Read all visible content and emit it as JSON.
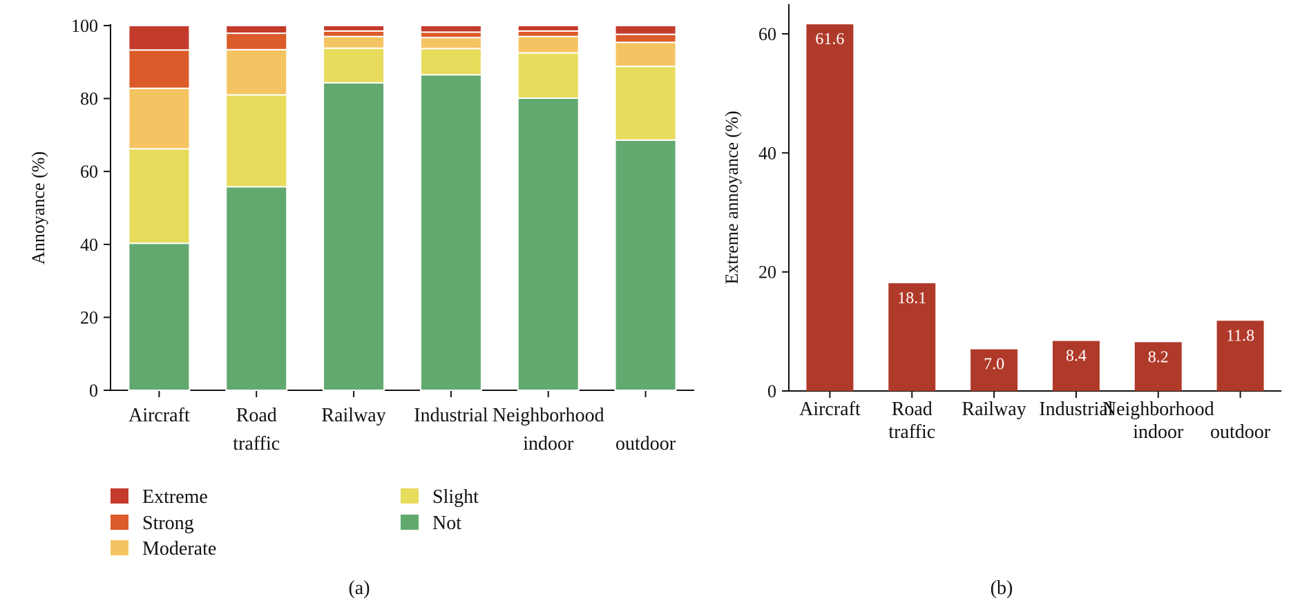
{
  "chart_data": [
    {
      "type": "bar",
      "stacked": true,
      "panel_label": "(a)",
      "ylabel": "Annoyance (%)",
      "ylim": [
        0,
        100
      ],
      "yticks": [
        "0",
        "20",
        "40",
        "60",
        "80",
        "100"
      ],
      "categories": [
        [
          "Aircraft"
        ],
        [
          "Road",
          "traffic"
        ],
        [
          "Railway"
        ],
        [
          "Industrial"
        ],
        [
          "Neighborhood",
          "indoor"
        ],
        [
          "",
          "outdoor"
        ]
      ],
      "series": [
        {
          "name": "Not",
          "color": "#62a970",
          "values": [
            40.3,
            55.8,
            84.3,
            86.5,
            80.1,
            68.6
          ]
        },
        {
          "name": "Slight",
          "color": "#e7dc5c",
          "values": [
            25.9,
            25.2,
            9.5,
            7.2,
            12.4,
            20.2
          ]
        },
        {
          "name": "Moderate",
          "color": "#f5c462",
          "values": [
            16.6,
            12.4,
            3.2,
            3.0,
            4.5,
            6.6
          ]
        },
        {
          "name": "Strong",
          "color": "#db5b2a",
          "values": [
            10.5,
            4.5,
            1.5,
            1.5,
            1.5,
            2.2
          ]
        },
        {
          "name": "Extreme",
          "color": "#c43b2c",
          "values": [
            6.7,
            2.1,
            1.5,
            1.8,
            1.5,
            2.4
          ]
        }
      ],
      "legend": [
        "Extreme",
        "Strong",
        "Moderate",
        "Slight",
        "Not"
      ],
      "legend_placement": "bottom"
    },
    {
      "type": "bar",
      "panel_label": "(b)",
      "ylabel": "Extreme annoyance (%)",
      "ylim": [
        0,
        65
      ],
      "yticks": [
        "0",
        "20",
        "40",
        "60"
      ],
      "categories": [
        [
          "Aircraft"
        ],
        [
          "Road",
          "traffic"
        ],
        [
          "Railway"
        ],
        [
          "Industrial"
        ],
        [
          "Neighborhood",
          "indoor"
        ],
        [
          "",
          "outdoor"
        ]
      ],
      "values": [
        61.6,
        18.1,
        7.0,
        8.4,
        8.2,
        11.8
      ],
      "data_labels": [
        "61.6",
        "18.1",
        "7.0",
        "8.4",
        "8.2",
        "11.8"
      ],
      "color": "#b03a2a"
    }
  ]
}
